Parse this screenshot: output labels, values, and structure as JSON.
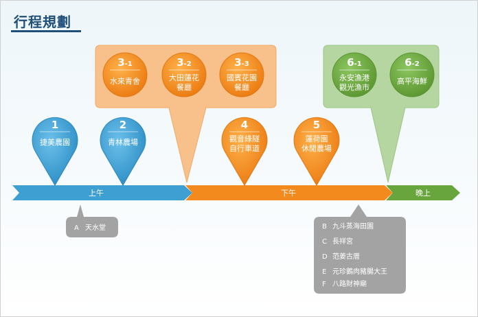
{
  "title": "行程規劃",
  "segments": {
    "morning": "上午",
    "afternoon": "下午",
    "evening": "晚上"
  },
  "stops": [
    {
      "num": "1",
      "name": "捷美農園"
    },
    {
      "num": "2",
      "name": "青林農場"
    },
    {
      "num": "3",
      "sub": "-1",
      "name": "水來青舍"
    },
    {
      "num": "3",
      "sub": "-2",
      "name": [
        "大田蓮花",
        "餐廳"
      ]
    },
    {
      "num": "3",
      "sub": "-3",
      "name": [
        "國賓花園",
        "餐廳"
      ]
    },
    {
      "num": "4",
      "name": [
        "觀音綠隧",
        "自行車道"
      ]
    },
    {
      "num": "5",
      "name": [
        "蓮荷園",
        "休閒農場"
      ]
    },
    {
      "num": "6",
      "sub": "-1",
      "name": [
        "永安漁港",
        "觀光漁市"
      ]
    },
    {
      "num": "6",
      "sub": "-2",
      "name": "高平海鮮"
    }
  ],
  "notes_a": [
    {
      "letter": "A",
      "text": "天水堂"
    }
  ],
  "notes_b": [
    {
      "letter": "B",
      "text": "九斗蒸海田園"
    },
    {
      "letter": "C",
      "text": "長祥宮"
    },
    {
      "letter": "D",
      "text": "范姜古厝"
    },
    {
      "letter": "E",
      "text": "元珍鵝肉豬腸大王"
    },
    {
      "letter": "F",
      "text": "八路財神廟"
    }
  ],
  "colors": {
    "blue": "#3e9fd3",
    "orange": "#f28a1e",
    "green": "#69a53d",
    "grey": "#a3a3a3",
    "orange_panel": "#f8c08a",
    "green_panel": "#b5d6a0"
  }
}
